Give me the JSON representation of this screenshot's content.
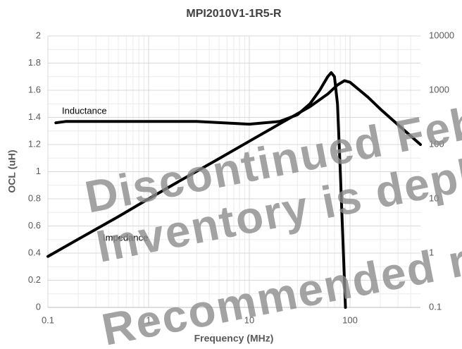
{
  "chart_data": {
    "type": "line",
    "title": "MPI2010V1-1R5-R",
    "x_label": "Frequency (MHz)",
    "y_label": "OCL (uH)",
    "xscale": "log",
    "y2scale": "log",
    "grid": true,
    "xlim": [
      0.1,
      500
    ],
    "xticks": [
      0.1,
      1,
      10,
      100
    ],
    "ylim": [
      0,
      2
    ],
    "yticks": [
      0,
      0.2,
      0.4,
      0.6,
      0.8,
      1,
      1.2,
      1.4,
      1.6,
      1.8,
      2
    ],
    "y2lim": [
      0.1,
      10000
    ],
    "y2ticks": [
      0.1,
      1,
      10,
      100,
      1000,
      10000
    ],
    "series": [
      {
        "name": "Inductance",
        "color": "#000000",
        "x": [
          0.12,
          0.15,
          0.3,
          1,
          3,
          10,
          20,
          30,
          40,
          50,
          60,
          65,
          70,
          75,
          80,
          85,
          90
        ],
        "values": [
          1.36,
          1.37,
          1.37,
          1.37,
          1.37,
          1.35,
          1.37,
          1.42,
          1.5,
          1.6,
          1.7,
          1.73,
          1.7,
          1.5,
          1.0,
          0.5,
          0
        ]
      },
      {
        "name": "Impedance",
        "color": "#000000",
        "axis": "y2",
        "x": [
          0.1,
          0.2,
          0.5,
          1,
          2,
          5,
          10,
          20,
          40,
          60,
          75,
          88,
          100,
          150,
          200,
          300,
          500
        ],
        "values": [
          0.87,
          1.8,
          4.7,
          10,
          21,
          55,
          115,
          240,
          500,
          850,
          1250,
          1500,
          1400,
          750,
          450,
          230,
          100
        ]
      }
    ],
    "watermark": [
      "Discontinued Febr",
      "Inventory is deple",
      "Recommended re"
    ]
  }
}
